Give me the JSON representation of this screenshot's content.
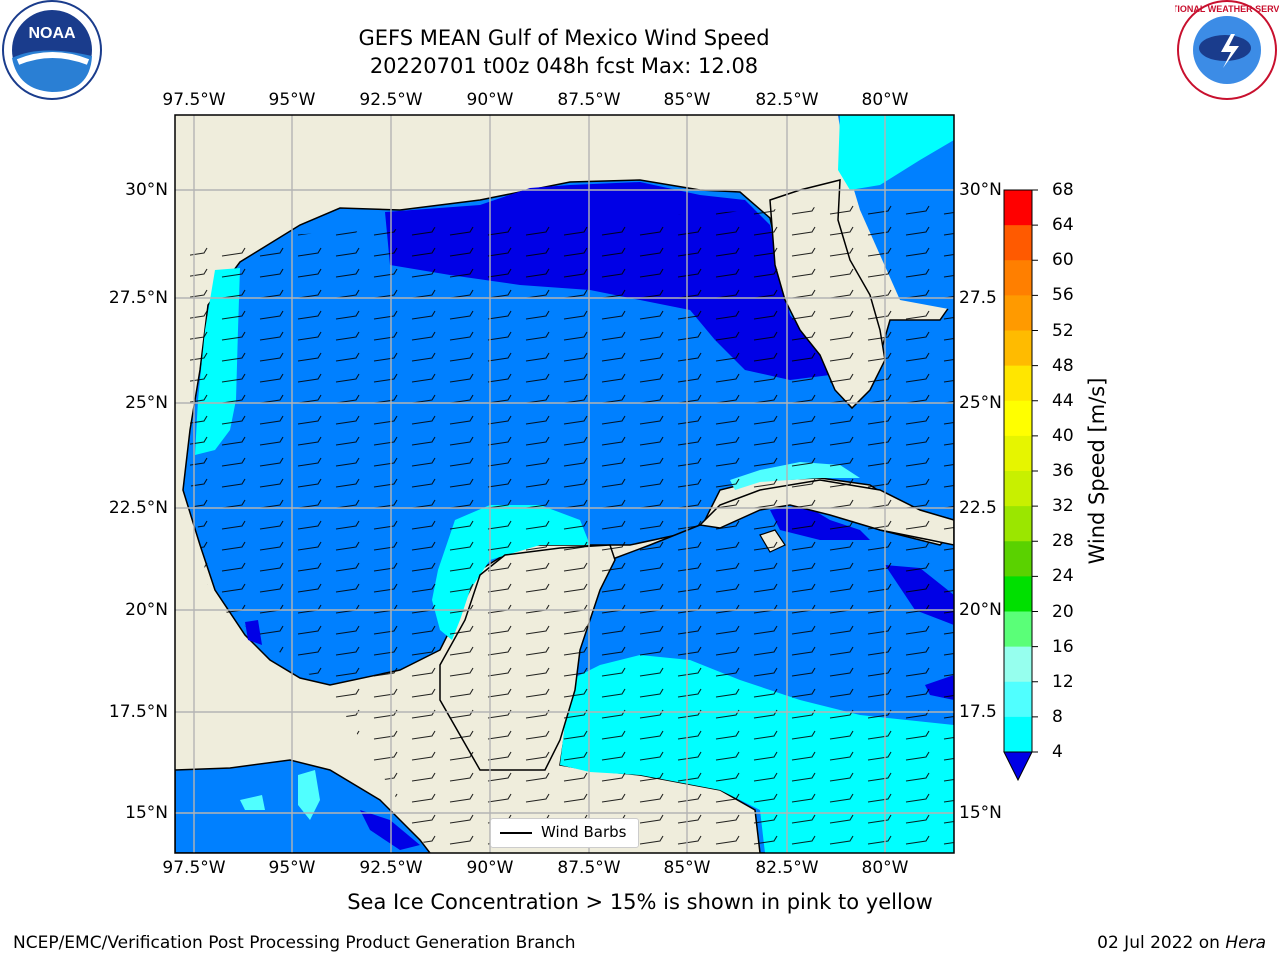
{
  "title": {
    "line1": "GEFS MEAN Gulf of Mexico Wind Speed",
    "line2": "20220701 t00z 048h fcst   Max: 12.08"
  },
  "axes": {
    "lon_labels": [
      "97.5°W",
      "95°W",
      "92.5°W",
      "90°W",
      "87.5°W",
      "85°W",
      "82.5°W",
      "80°W"
    ],
    "lat_labels_left": [
      "30°N",
      "27.5°N",
      "25°N",
      "22.5°N",
      "20°N",
      "17.5°N",
      "15°N"
    ],
    "lat_labels_right": [
      "30°N",
      "27.5",
      "25°N",
      "22.5",
      "20°N",
      "17.5",
      "15°N"
    ]
  },
  "colorbar": {
    "title": "Wind Speed [m/s]",
    "levels": [
      "68",
      "64",
      "60",
      "56",
      "52",
      "48",
      "44",
      "40",
      "36",
      "32",
      "28",
      "24",
      "20",
      "16",
      "12",
      "8",
      "4"
    ],
    "colors": [
      "#ff0000",
      "#ff2d00",
      "#ff5a00",
      "#ff7f00",
      "#ff9a00",
      "#ffbb00",
      "#ffe600",
      "#ffff00",
      "#e6f500",
      "#c8f000",
      "#9be600",
      "#5ad200",
      "#00e000",
      "#5aff78",
      "#96ffee",
      "#50ffff",
      "#00ffff",
      "#0080ff"
    ],
    "extend_color": "#0000e6"
  },
  "legend": {
    "label": "Wind Barbs"
  },
  "note": "Sea Ice Concentration > 15% is shown in pink to yellow",
  "footer": {
    "left": "NCEP/EMC/Verification Post Processing Product Generation Branch",
    "right_date": "02 Jul 2022 on ",
    "right_machine": "Hera"
  },
  "map_colors": {
    "land": "#efeddc",
    "blue": "#0080ff",
    "dark_blue": "#0000e6",
    "cyan": "#00ffff",
    "light_cyan": "#50ffff",
    "grid": "#b4b4b4"
  },
  "logos": {
    "left": "NOAA",
    "right": "NATIONAL WEATHER SERVICE"
  }
}
